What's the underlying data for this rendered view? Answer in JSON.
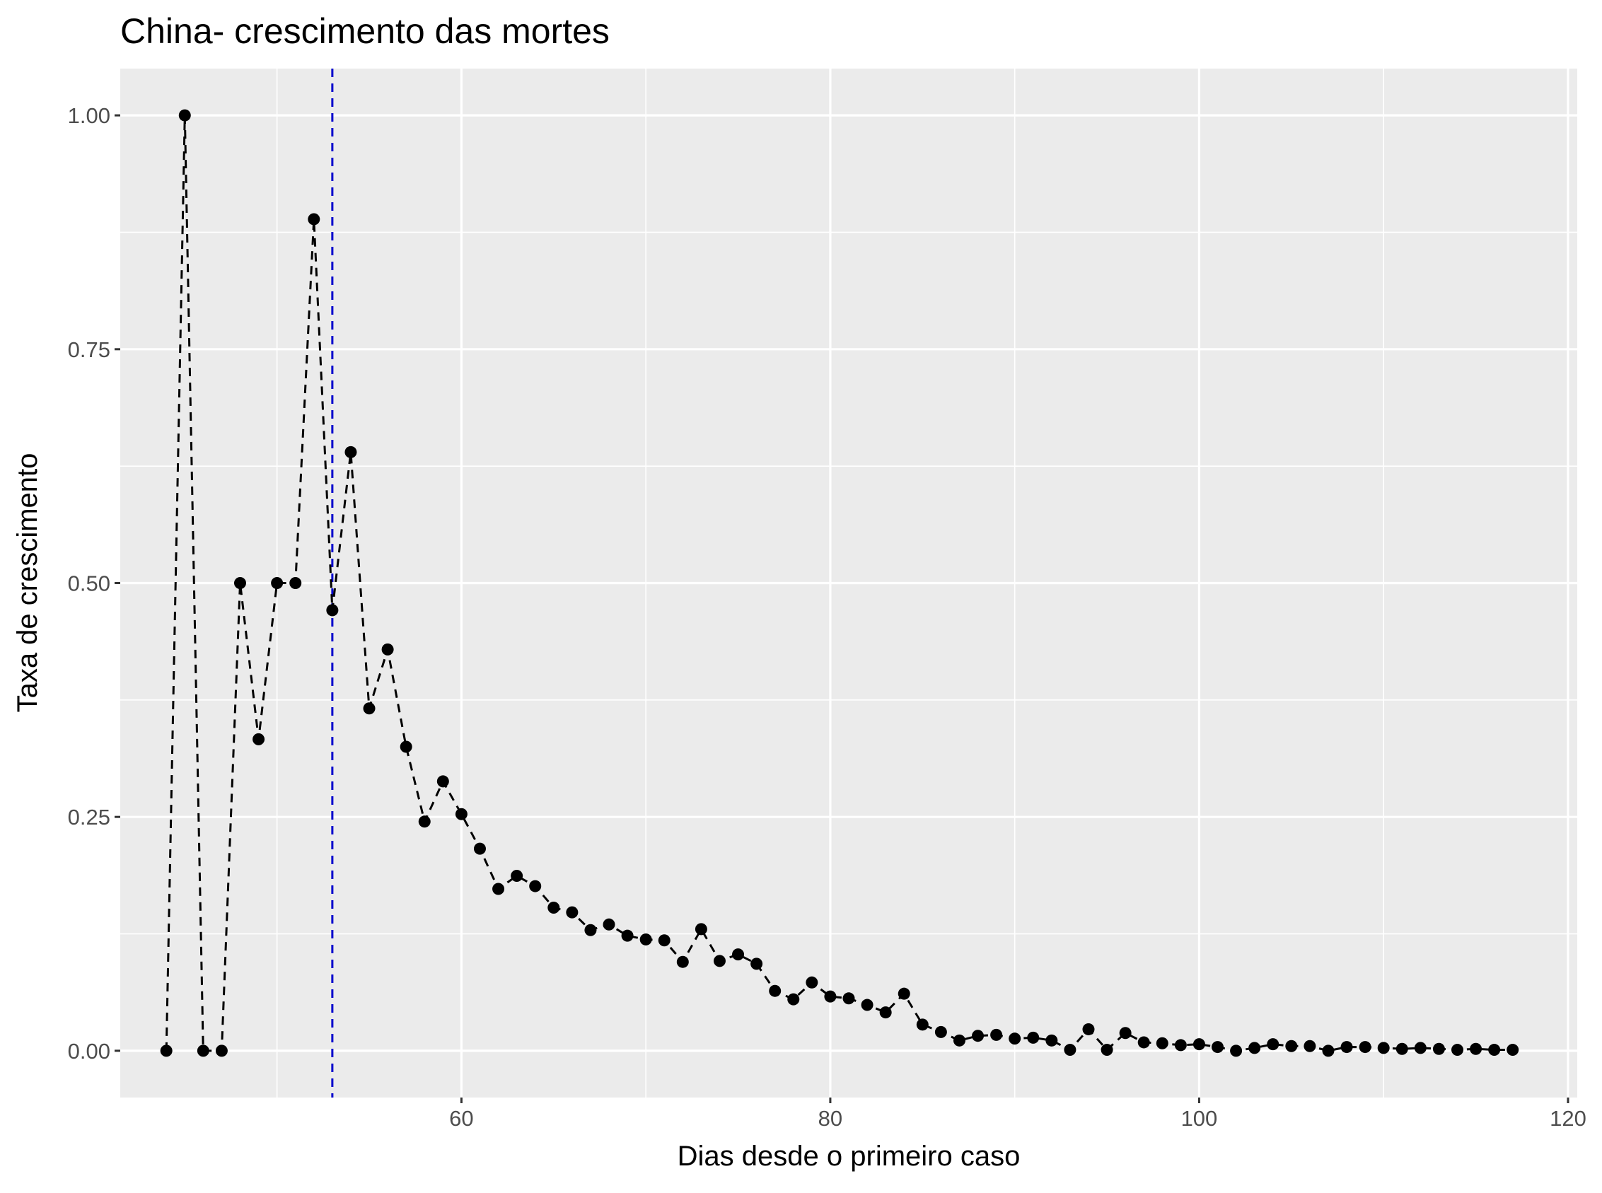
{
  "chart_data": {
    "type": "line",
    "title": "China- crescimento das mortes",
    "xlabel": "Dias desde o primeiro caso",
    "ylabel": "Taxa de crescimento",
    "xlim": [
      41.5,
      120.5
    ],
    "ylim": [
      -0.05,
      1.05
    ],
    "x_ticks": [
      60,
      80,
      100,
      120
    ],
    "y_ticks": [
      0.0,
      0.25,
      0.5,
      0.75,
      1.0
    ],
    "y_tick_labels": [
      "0.00",
      "0.25",
      "0.50",
      "0.75",
      "1.00"
    ],
    "grid": true,
    "legend": "none",
    "vline": {
      "x": 53,
      "color": "#0000cc",
      "style": "dashed"
    },
    "series": [
      {
        "color": "#000000",
        "style": "dashed-line-with-points",
        "x": [
          44,
          45,
          46,
          47,
          48,
          49,
          50,
          51,
          52,
          53,
          54,
          55,
          56,
          57,
          58,
          59,
          60,
          61,
          62,
          63,
          64,
          65,
          66,
          67,
          68,
          69,
          70,
          71,
          72,
          73,
          74,
          75,
          76,
          77,
          78,
          79,
          80,
          81,
          82,
          83,
          84,
          85,
          86,
          87,
          88,
          89,
          90,
          91,
          92,
          93,
          94,
          95,
          96,
          97,
          98,
          99,
          100,
          101,
          102,
          103,
          104,
          105,
          106,
          107,
          108,
          109,
          110,
          111,
          112,
          113,
          114,
          115,
          116,
          117
        ],
        "values": [
          0.0,
          1.0,
          0.0,
          0.0,
          0.5,
          0.333,
          0.5,
          0.5,
          0.889,
          0.471,
          0.64,
          0.366,
          0.429,
          0.325,
          0.245,
          0.288,
          0.253,
          0.216,
          0.173,
          0.187,
          0.176,
          0.153,
          0.148,
          0.129,
          0.135,
          0.123,
          0.119,
          0.118,
          0.095,
          0.13,
          0.096,
          0.103,
          0.093,
          0.064,
          0.055,
          0.073,
          0.058,
          0.056,
          0.049,
          0.041,
          0.061,
          0.028,
          0.02,
          0.011,
          0.016,
          0.017,
          0.013,
          0.014,
          0.011,
          0.001,
          0.023,
          0.001,
          0.019,
          0.009,
          0.008,
          0.006,
          0.007,
          0.004,
          0.0,
          0.003,
          0.007,
          0.005,
          0.005,
          0.0,
          0.004,
          0.004,
          0.003,
          0.002,
          0.003,
          0.002,
          0.001,
          0.002,
          0.001,
          0.001
        ]
      }
    ]
  }
}
